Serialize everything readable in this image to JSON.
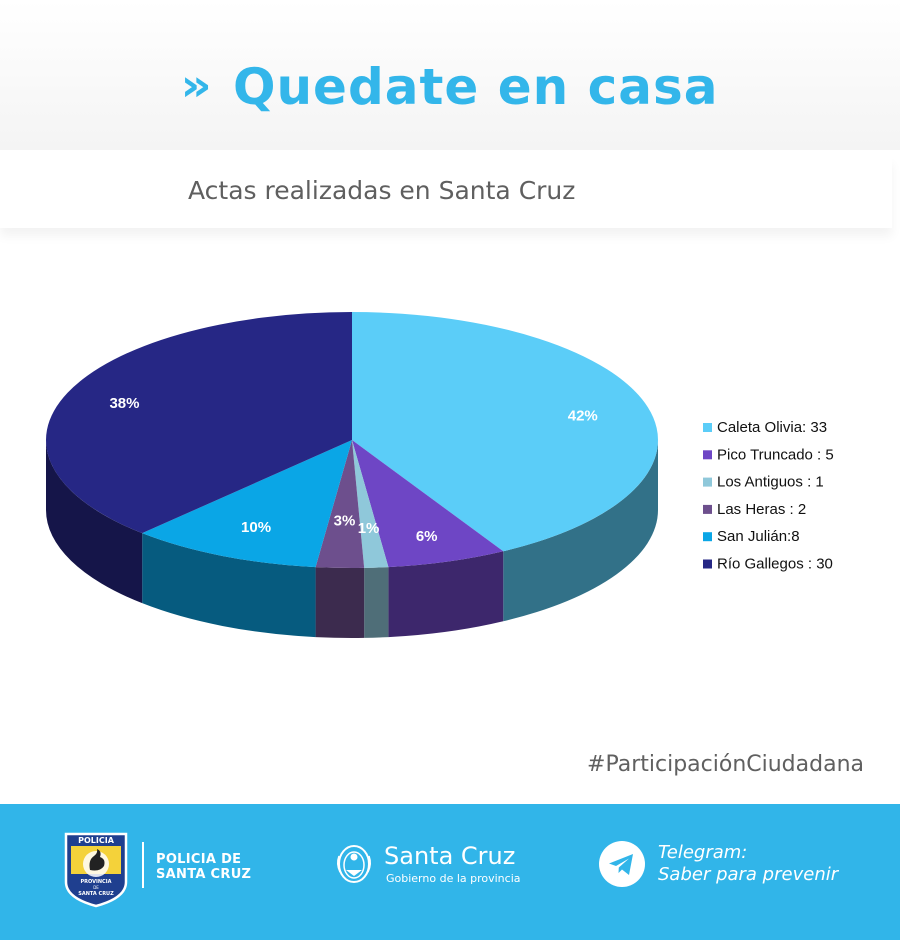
{
  "header": {
    "chevron": "»",
    "title": "Quedate en casa"
  },
  "subtitle": "Actas realizadas en Santa Cruz",
  "chart_data": {
    "type": "pie",
    "categories": [
      "Caleta Olivia",
      "Pico Truncado",
      "Los Antiguos",
      "Las Heras",
      "San Julián",
      "Río Gallegos"
    ],
    "values": [
      33,
      5,
      1,
      2,
      8,
      30
    ],
    "percent_labels": [
      "42%",
      "6%",
      "1%",
      "3%",
      "10%",
      "38%"
    ],
    "legend_labels": [
      "Caleta Olivia:  33",
      "Pico Truncado : 5",
      "Los Antiguos : 1",
      "Las Heras : 2",
      "San Julián:8",
      "Río Gallegos : 30"
    ],
    "colors": [
      "#5bcdf8",
      "#6e46c5",
      "#8fc8da",
      "#6d4f8d",
      "#0aa6e6",
      "#262785"
    ],
    "legend_position": "right",
    "style": "3d"
  },
  "hashtag": "#ParticipaciónCiudadana",
  "footer": {
    "police_logo_text": [
      "POLICIA",
      "PROVINCIA",
      "DE",
      "SANTA CRUZ"
    ],
    "police_name": "POLICIA DE SANTA CRUZ",
    "province_name": "Santa Cruz",
    "province_sub": "Gobierno de la provincia",
    "telegram_line1": "Telegram:",
    "telegram_line2": "Saber para prevenir",
    "colors": {
      "background": "#31b5e9",
      "text": "#ffffff",
      "accent": "#33b6ea"
    }
  }
}
